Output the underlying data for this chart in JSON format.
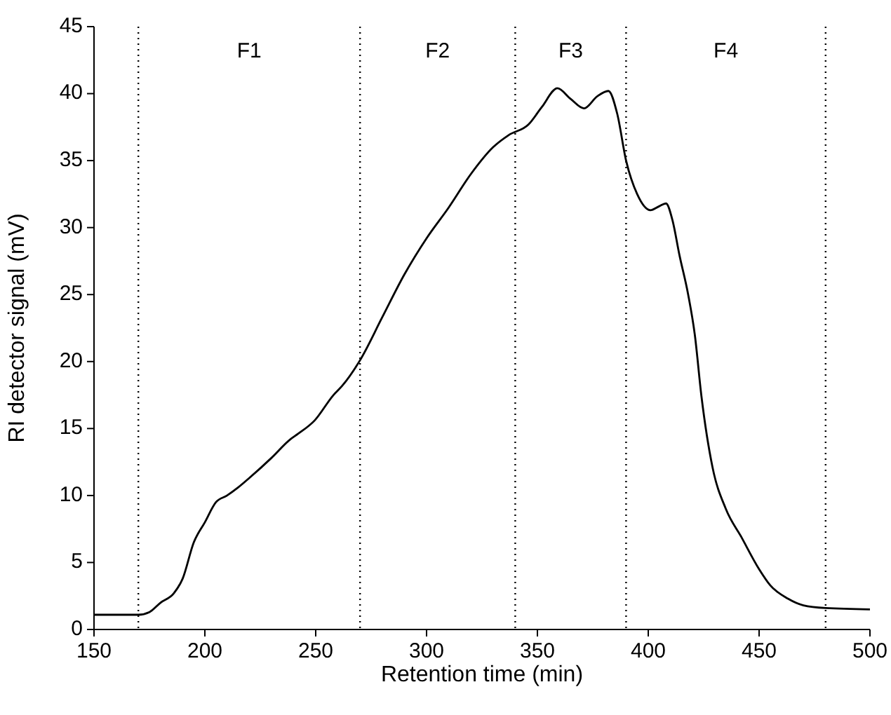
{
  "chart_data": {
    "type": "line",
    "xlabel": "Retention time (min)",
    "ylabel": "RI detector signal (mV)",
    "xlim": [
      150,
      500
    ],
    "xticks": [
      150,
      200,
      250,
      300,
      350,
      400,
      450,
      500
    ],
    "ylim": [
      0,
      45
    ],
    "yticks": [
      0,
      5,
      10,
      15,
      20,
      25,
      30,
      35,
      40,
      45
    ],
    "grid": false,
    "marker": "none",
    "line_style": "solid",
    "series": [
      {
        "color": "#000000",
        "x": [
          150,
          170,
          175,
          180,
          186,
          190,
          195,
          200,
          205,
          210,
          215,
          220,
          230,
          238.6,
          242,
          249.5,
          258,
          262,
          270,
          280,
          290,
          300,
          310,
          320,
          330,
          337,
          346,
          352,
          359,
          365,
          371,
          377,
          382,
          386,
          390,
          395,
          401,
          405,
          408,
          411,
          414,
          418,
          421,
          424,
          429,
          435,
          442,
          450,
          455,
          463,
          470,
          480,
          500
        ],
        "values": [
          1.1,
          1.1,
          1.3,
          2.0,
          2.7,
          3.8,
          6.5,
          8.0,
          9.5,
          10.0,
          10.6,
          11.3,
          12.8,
          14.2,
          14.6,
          15.6,
          17.5,
          18.2,
          20.1,
          23.3,
          26.5,
          29.2,
          31.5,
          34.0,
          36.0,
          36.9,
          37.7,
          39.0,
          40.4,
          39.6,
          38.9,
          39.8,
          40.2,
          38.5,
          35.0,
          32.5,
          31.3,
          31.6,
          31.8,
          30.5,
          28.0,
          25.0,
          22.0,
          17.4,
          12.1,
          9.0,
          6.9,
          4.5,
          3.3,
          2.3,
          1.8,
          1.6,
          1.5
        ]
      }
    ],
    "ref_lines": [
      {
        "axis": "x",
        "value": 170,
        "color": "#000000",
        "line_style": "dotted"
      },
      {
        "axis": "x",
        "value": 270,
        "color": "#000000",
        "line_style": "dotted"
      },
      {
        "axis": "x",
        "value": 340,
        "color": "#000000",
        "line_style": "dotted"
      },
      {
        "axis": "x",
        "value": 390,
        "color": "#000000",
        "line_style": "dotted"
      },
      {
        "axis": "x",
        "value": 480,
        "color": "#000000",
        "line_style": "dotted"
      }
    ],
    "annotations": [
      "F1",
      "F2",
      "F3",
      "F4"
    ]
  }
}
